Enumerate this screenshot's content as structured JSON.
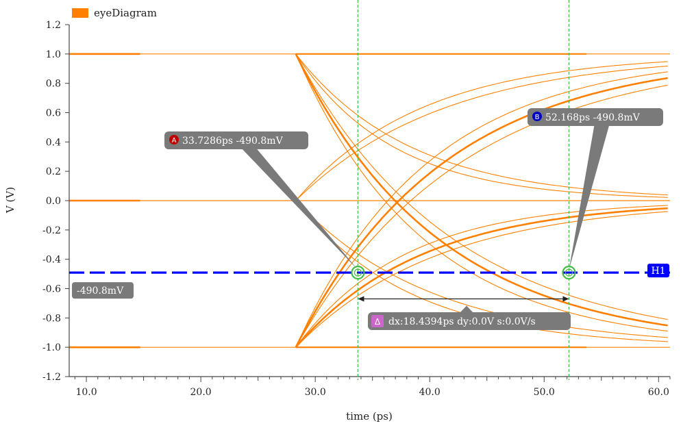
{
  "chart_data": {
    "type": "line",
    "legend": {
      "label": "eyeDiagram",
      "color": "#ff8000",
      "placement": "top-left"
    },
    "xlabel": "time (ps)",
    "ylabel": "V (V)",
    "xlim": [
      8.5,
      61.0
    ],
    "ylim": [
      -1.2,
      1.2
    ],
    "xticks": [
      10.0,
      20.0,
      30.0,
      40.0,
      50.0,
      60.0
    ],
    "xtick_labels": [
      "10.0",
      "20.0",
      "30.0",
      "40.0",
      "50.0",
      "60.0"
    ],
    "yticks": [
      1.2,
      1.0,
      0.8,
      0.6,
      0.4,
      0.2,
      0.0,
      -0.2,
      -0.4,
      -0.6,
      -0.8,
      -1.0,
      -1.2
    ],
    "ytick_labels": [
      "1.2",
      "1.0",
      "0.8",
      "0.6",
      "0.4",
      "0.2",
      "0.0",
      "-0.2",
      "-0.4",
      "-0.6",
      "-0.8",
      "-1.0",
      "-1.2"
    ],
    "grid": false,
    "trace_color": "#ff8000",
    "transition_start_ps": 28.3,
    "levels": [
      1.0,
      0.0,
      -1.0
    ],
    "settle_edges_ps": [
      14.7,
      53.7
    ],
    "trace_curves": [
      {
        "from": 1.0,
        "to": -1.0,
        "tau_ps": 12.5,
        "bold": true
      },
      {
        "from": 1.0,
        "to": -1.0,
        "tau_ps": 11.2,
        "bold": false
      },
      {
        "from": 1.0,
        "to": -1.0,
        "tau_ps": 13.8,
        "bold": false
      },
      {
        "from": 1.0,
        "to": 0.0,
        "tau_ps": 8.5,
        "bold": false
      },
      {
        "from": 1.0,
        "to": 0.0,
        "tau_ps": 10.0,
        "bold": false
      },
      {
        "from": 0.0,
        "to": 1.0,
        "tau_ps": 11.0,
        "bold": false
      },
      {
        "from": 0.0,
        "to": 1.0,
        "tau_ps": 13.0,
        "bold": false
      },
      {
        "from": 0.0,
        "to": -1.0,
        "tau_ps": 10.0,
        "bold": false
      },
      {
        "from": 0.0,
        "to": -1.0,
        "tau_ps": 12.0,
        "bold": false
      },
      {
        "from": -1.0,
        "to": 1.0,
        "tau_ps": 13.0,
        "bold": true
      },
      {
        "from": -1.0,
        "to": 1.0,
        "tau_ps": 11.6,
        "bold": false
      },
      {
        "from": -1.0,
        "to": 1.0,
        "tau_ps": 14.5,
        "bold": false
      },
      {
        "from": -1.0,
        "to": 0.0,
        "tau_ps": 11.0,
        "bold": true
      },
      {
        "from": -1.0,
        "to": 0.0,
        "tau_ps": 9.5,
        "bold": false
      },
      {
        "from": -1.0,
        "to": 0.0,
        "tau_ps": 12.5,
        "bold": false
      }
    ],
    "horizontal_marker": {
      "label": "H1",
      "value_v": -0.4908,
      "value_text": "-490.8mV",
      "color": "#0000ff"
    },
    "vertical_markers": [
      {
        "id": "A",
        "x_ps": 33.7286,
        "y_v": -0.4908,
        "text": "33.7286ps -490.8mV",
        "badge_color": "#c00000"
      },
      {
        "id": "B",
        "x_ps": 52.168,
        "y_v": -0.4908,
        "text": "52.168ps -490.8mV",
        "badge_color": "#0000c0"
      }
    ],
    "vertical_marker_color": "#44bb44",
    "delta": {
      "badge": "Δ",
      "text": "dx:18.4394ps dy:0.0V s:0.0V/s",
      "arrow_y_v": -0.67,
      "badge_color": "#cc66cc"
    },
    "annotation_box_color": "#7a7a7a"
  }
}
